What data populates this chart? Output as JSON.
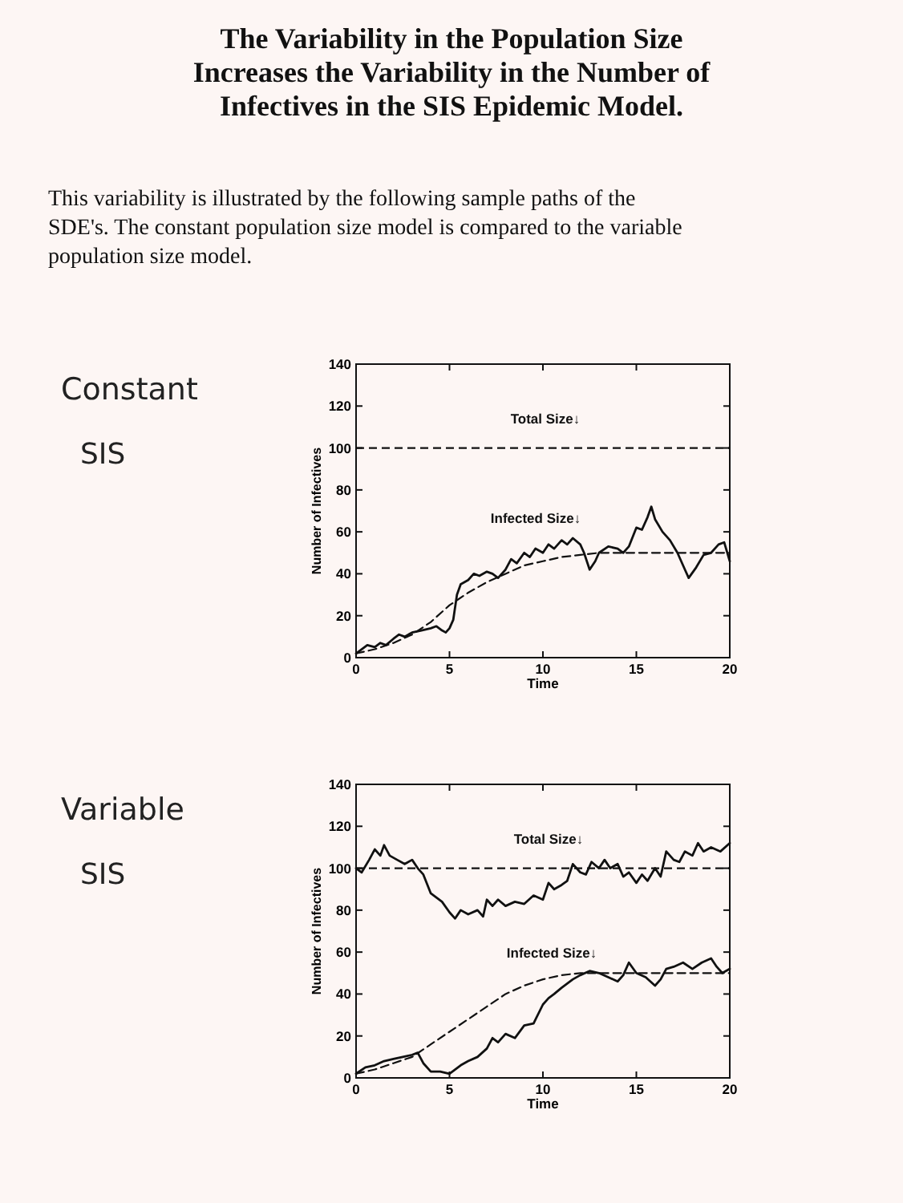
{
  "chart_data": [
    {
      "type": "line",
      "title": "The Variability in the Population Size Increases the Variability in the Number of Infectives in the SIS Epidemic Model.",
      "subtitle": "This variability is illustrated by the following sample paths of the SDE's. The constant population size model is compared to the variable population size model.",
      "xlabel": "Time",
      "ylabel": "Number of Infectives",
      "xlim": [
        0,
        20
      ],
      "xticks": [
        0,
        5,
        10,
        15,
        20
      ],
      "ylim": [
        0,
        140
      ],
      "yticks": [
        0,
        20,
        40,
        60,
        80,
        100,
        120,
        140
      ],
      "grid": false,
      "annotations": [
        "Constant",
        "SIS",
        "Total Size↓",
        "Infected Size↓"
      ],
      "ref_lines": [
        {
          "axis": "y",
          "value": 100,
          "line_style": "dashed",
          "color": "#111111"
        }
      ],
      "series": [
        {
          "color": "#111111",
          "line_style": "solid",
          "x": [
            0,
            0.3,
            0.6,
            1,
            1.3,
            1.6,
            2,
            2.3,
            2.6,
            3,
            3.5,
            4,
            4.3,
            4.6,
            4.8,
            5,
            5.2,
            5.4,
            5.6,
            6,
            6.3,
            6.6,
            7,
            7.3,
            7.6,
            8,
            8.3,
            8.6,
            9,
            9.3,
            9.6,
            10,
            10.3,
            10.6,
            11,
            11.3,
            11.6,
            12,
            12.2,
            12.5,
            12.8,
            13,
            13.5,
            14,
            14.3,
            14.6,
            15,
            15.3,
            15.6,
            15.8,
            16,
            16.4,
            16.8,
            17.2,
            17.6,
            17.8,
            18.2,
            18.6,
            19,
            19.4,
            19.7,
            20
          ],
          "values": [
            2,
            4,
            6,
            5,
            7,
            6,
            9,
            11,
            10,
            12,
            13,
            14,
            15,
            13,
            12,
            14,
            18,
            30,
            35,
            37,
            40,
            39,
            41,
            40,
            38,
            42,
            47,
            45,
            50,
            48,
            52,
            50,
            54,
            52,
            56,
            54,
            57,
            54,
            50,
            42,
            46,
            50,
            53,
            52,
            50,
            53,
            62,
            61,
            67,
            72,
            66,
            60,
            56,
            50,
            42,
            38,
            43,
            49,
            50,
            54,
            55,
            46
          ]
        },
        {
          "color": "#111111",
          "line_style": "dashed",
          "x": [
            0,
            1,
            2,
            3,
            4,
            5,
            6,
            7,
            8,
            9,
            10,
            11,
            12,
            13,
            15,
            20
          ],
          "values": [
            2,
            4,
            7,
            11,
            17,
            25,
            31,
            36,
            40,
            44,
            46,
            48,
            49,
            50,
            50,
            50
          ]
        }
      ]
    },
    {
      "type": "line",
      "xlabel": "Time",
      "ylabel": "Number of Infectives",
      "xlim": [
        0,
        20
      ],
      "xticks": [
        0,
        5,
        10,
        15,
        20
      ],
      "ylim": [
        0,
        140
      ],
      "yticks": [
        0,
        20,
        40,
        60,
        80,
        100,
        120,
        140
      ],
      "grid": false,
      "annotations": [
        "Variable",
        "SIS",
        "Total Size↓",
        "Infected Size↓"
      ],
      "ref_lines": [
        {
          "axis": "y",
          "value": 100,
          "line_style": "dashed",
          "color": "#111111"
        }
      ],
      "series": [
        {
          "color": "#111111",
          "line_style": "solid",
          "x": [
            0,
            0.3,
            0.7,
            1,
            1.3,
            1.5,
            1.8,
            2.2,
            2.6,
            3,
            3.3,
            3.6,
            4,
            4.3,
            4.6,
            5,
            5.3,
            5.6,
            6,
            6.5,
            6.8,
            7,
            7.3,
            7.6,
            8,
            8.5,
            9,
            9.5,
            10,
            10.3,
            10.6,
            11,
            11.3,
            11.6,
            12,
            12.3,
            12.6,
            13,
            13.3,
            13.6,
            14,
            14.3,
            14.6,
            15,
            15.3,
            15.6,
            16,
            16.3,
            16.6,
            17,
            17.3,
            17.6,
            18,
            18.3,
            18.6,
            19,
            19.5,
            20
          ],
          "values": [
            100,
            98,
            104,
            109,
            106,
            111,
            106,
            104,
            102,
            104,
            100,
            97,
            88,
            86,
            84,
            79,
            76,
            80,
            78,
            80,
            77,
            85,
            82,
            85,
            82,
            84,
            83,
            87,
            85,
            93,
            90,
            92,
            94,
            102,
            98,
            97,
            103,
            100,
            104,
            100,
            102,
            96,
            98,
            93,
            97,
            94,
            100,
            96,
            108,
            104,
            103,
            108,
            106,
            112,
            108,
            110,
            108,
            112
          ]
        },
        {
          "color": "#111111",
          "line_style": "solid",
          "x": [
            0,
            0.5,
            1,
            1.5,
            2,
            2.5,
            3,
            3.3,
            3.6,
            4,
            4.5,
            5,
            5.3,
            5.6,
            6,
            6.5,
            7,
            7.3,
            7.6,
            8,
            8.5,
            9,
            9.5,
            10,
            10.3,
            10.6,
            11,
            11.3,
            11.6,
            12,
            12.5,
            13,
            13.5,
            14,
            14.3,
            14.6,
            15,
            15.5,
            16,
            16.3,
            16.6,
            17,
            17.5,
            18,
            18.5,
            19,
            19.3,
            19.6,
            20
          ],
          "values": [
            2,
            5,
            6,
            8,
            9,
            10,
            11,
            12,
            7,
            3,
            3,
            2,
            4,
            6,
            8,
            10,
            14,
            19,
            17,
            21,
            19,
            25,
            26,
            35,
            38,
            40,
            43,
            45,
            47,
            49,
            51,
            50,
            48,
            46,
            49,
            55,
            50,
            48,
            44,
            47,
            52,
            53,
            55,
            52,
            55,
            57,
            53,
            50,
            52
          ]
        },
        {
          "color": "#111111",
          "line_style": "dashed",
          "x": [
            0,
            1,
            2,
            3,
            4,
            5,
            6,
            7,
            8,
            9,
            10,
            11,
            12,
            13,
            20
          ],
          "values": [
            2,
            4,
            7,
            10,
            16,
            22,
            28,
            34,
            40,
            44,
            47,
            49,
            50,
            50,
            50
          ]
        }
      ]
    }
  ]
}
